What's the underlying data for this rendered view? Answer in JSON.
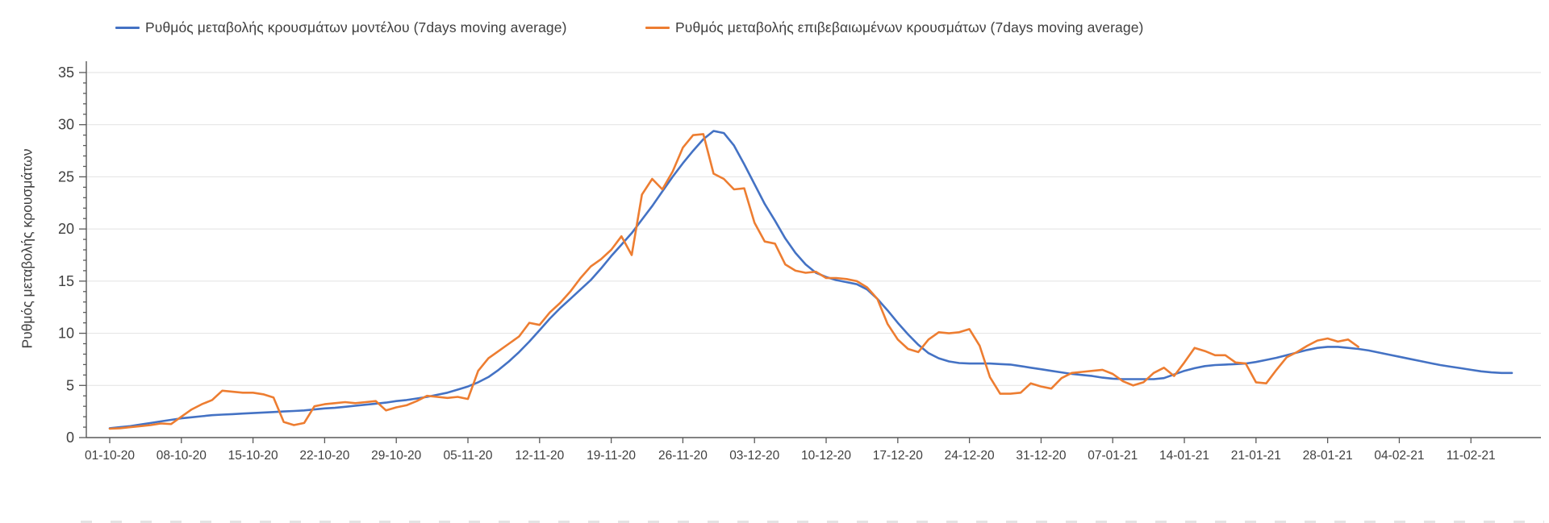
{
  "page": {
    "background": "#ffffff"
  },
  "chart_data": {
    "type": "line",
    "title": "",
    "xlabel": "",
    "ylabel": "Ρυθμός μεταβολής κρουσμάτων",
    "ylim": [
      0,
      35
    ],
    "y_ticks": [
      0,
      5,
      10,
      15,
      20,
      25,
      30,
      35
    ],
    "grid": "horizontal",
    "legend_position": "top",
    "x_unit": "daily points, day 0 = 01-10-20",
    "x_tick_day_index": [
      0,
      7,
      14,
      21,
      28,
      35,
      42,
      49,
      56,
      63,
      70,
      77,
      84,
      91,
      98,
      105,
      112,
      119,
      126,
      133
    ],
    "x_tick_labels": [
      "01-10-20",
      "08-10-20",
      "15-10-20",
      "22-10-20",
      "29-10-20",
      "05-11-20",
      "12-11-20",
      "19-11-20",
      "26-11-20",
      "03-12-20",
      "10-12-20",
      "17-12-20",
      "24-12-20",
      "31-12-20",
      "07-01-21",
      "14-01-21",
      "21-01-21",
      "28-01-21",
      "04-02-21",
      "11-02-21"
    ],
    "style": {
      "grid_color": "#e2e2e2",
      "axis_color": "#595959",
      "tick_text_color": "#404040",
      "line_width": 2.6
    },
    "series": [
      {
        "name": "Ρυθμός μεταβολής κρουσμάτων μοντέλου (7days moving average)",
        "color": "#4472C4",
        "values": [
          0.9,
          1.0,
          1.1,
          1.25,
          1.4,
          1.55,
          1.7,
          1.85,
          1.95,
          2.05,
          2.15,
          2.2,
          2.25,
          2.3,
          2.35,
          2.4,
          2.45,
          2.5,
          2.55,
          2.6,
          2.7,
          2.8,
          2.85,
          2.95,
          3.05,
          3.15,
          3.25,
          3.35,
          3.5,
          3.6,
          3.75,
          3.9,
          4.1,
          4.3,
          4.6,
          4.9,
          5.3,
          5.8,
          6.5,
          7.3,
          8.2,
          9.2,
          10.3,
          11.4,
          12.4,
          13.3,
          14.2,
          15.1,
          16.2,
          17.4,
          18.5,
          19.6,
          20.9,
          22.2,
          23.6,
          25.0,
          26.3,
          27.5,
          28.6,
          29.4,
          29.2,
          28.0,
          26.2,
          24.3,
          22.4,
          20.8,
          19.1,
          17.7,
          16.6,
          15.8,
          15.4,
          15.1,
          14.9,
          14.7,
          14.2,
          13.3,
          12.2,
          11.0,
          9.9,
          8.9,
          8.1,
          7.6,
          7.3,
          7.15,
          7.1,
          7.1,
          7.1,
          7.05,
          7.0,
          6.85,
          6.7,
          6.55,
          6.4,
          6.25,
          6.1,
          6.0,
          5.9,
          5.75,
          5.65,
          5.6,
          5.6,
          5.6,
          5.6,
          5.7,
          6.05,
          6.4,
          6.65,
          6.85,
          6.95,
          7.0,
          7.05,
          7.1,
          7.25,
          7.45,
          7.65,
          7.9,
          8.15,
          8.4,
          8.6,
          8.7,
          8.7,
          8.6,
          8.5,
          8.35,
          8.15,
          7.95,
          7.75,
          7.55,
          7.35,
          7.15,
          6.95,
          6.8,
          6.65,
          6.5,
          6.35,
          6.25,
          6.2,
          6.2
        ]
      },
      {
        "name": "Ρυθμός μεταβολής επιβεβαιωμένων κρουσμάτων (7days moving average)",
        "color": "#ED7D31",
        "values": [
          0.85,
          0.9,
          1.0,
          1.1,
          1.2,
          1.35,
          1.3,
          2.0,
          2.7,
          3.2,
          3.6,
          4.5,
          4.4,
          4.3,
          4.3,
          4.15,
          3.85,
          1.5,
          1.2,
          1.4,
          3.0,
          3.2,
          3.3,
          3.4,
          3.3,
          3.4,
          3.5,
          2.6,
          2.9,
          3.1,
          3.5,
          4.0,
          3.9,
          3.8,
          3.9,
          3.7,
          6.4,
          7.6,
          8.3,
          9.0,
          9.7,
          11.0,
          10.8,
          12.0,
          12.9,
          14.0,
          15.3,
          16.4,
          17.1,
          18.0,
          19.3,
          17.5,
          23.3,
          24.8,
          23.8,
          25.5,
          27.8,
          29.0,
          29.1,
          25.3,
          24.8,
          23.8,
          23.9,
          20.6,
          18.8,
          18.6,
          16.6,
          16.0,
          15.8,
          15.9,
          15.3,
          15.3,
          15.2,
          15.0,
          14.4,
          13.3,
          10.9,
          9.4,
          8.5,
          8.2,
          9.4,
          10.1,
          10.0,
          10.1,
          10.4,
          8.8,
          5.8,
          4.2,
          4.2,
          4.3,
          5.2,
          4.9,
          4.7,
          5.7,
          6.2,
          6.3,
          6.4,
          6.5,
          6.1,
          5.4,
          5.0,
          5.3,
          6.2,
          6.7,
          5.9,
          7.2,
          8.6,
          8.3,
          7.9,
          7.9,
          7.2,
          7.1,
          5.3,
          5.2,
          6.5,
          7.7,
          8.2,
          8.8,
          9.3,
          9.5,
          9.2,
          9.4,
          8.7
        ]
      }
    ]
  }
}
